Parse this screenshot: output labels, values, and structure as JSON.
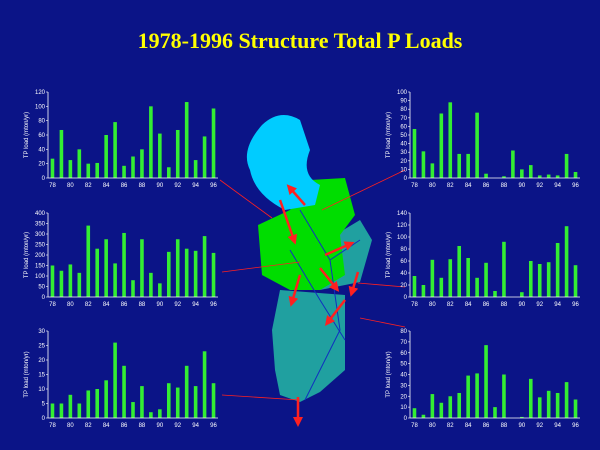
{
  "title": "1978-1996 Structure Total P Loads",
  "chart_data": [
    {
      "type": "bar",
      "ylabel": "TP load (mton/yr)",
      "color": "#33ee33",
      "categories": [
        "78",
        null,
        "80",
        null,
        "82",
        null,
        "84",
        null,
        "86",
        null,
        "88",
        null,
        "90",
        null,
        "92",
        null,
        "94",
        null,
        "96"
      ],
      "values": [
        27,
        67,
        25,
        40,
        20,
        21,
        60,
        78,
        17,
        30,
        40,
        100,
        62,
        15,
        67,
        106,
        25,
        58,
        97
      ],
      "ylim": [
        0,
        120
      ],
      "yticks": [
        0,
        20,
        40,
        60,
        80,
        100,
        120
      ]
    },
    {
      "type": "bar",
      "ylabel": "TP load (mton/yr)",
      "color": "#33ee33",
      "categories": [
        "78",
        null,
        "80",
        null,
        "82",
        null,
        "84",
        null,
        "86",
        null,
        "88",
        null,
        "90",
        null,
        "92",
        null,
        "94",
        null,
        "96"
      ],
      "values": [
        150,
        125,
        155,
        115,
        340,
        230,
        275,
        160,
        305,
        80,
        275,
        115,
        65,
        215,
        275,
        230,
        220,
        290,
        210
      ],
      "ylim": [
        0,
        400
      ],
      "yticks": [
        0,
        50,
        100,
        150,
        200,
        250,
        300,
        350,
        400
      ]
    },
    {
      "type": "bar",
      "ylabel": "TP load (mton/yr)",
      "color": "#33ee33",
      "categories": [
        "78",
        null,
        "80",
        null,
        "82",
        null,
        "84",
        null,
        "86",
        null,
        "88",
        null,
        "90",
        null,
        "92",
        null,
        "94",
        null,
        "96"
      ],
      "values": [
        5,
        5,
        8,
        5,
        9.5,
        10,
        13,
        26,
        18,
        5.5,
        11,
        2,
        3,
        12,
        10.5,
        18,
        11,
        23,
        12
      ],
      "ylim": [
        0,
        30
      ],
      "yticks": [
        0,
        5,
        10,
        15,
        20,
        25,
        30
      ]
    },
    {
      "type": "bar",
      "ylabel": "TP load (mton/yr)",
      "color": "#33ee33",
      "categories": [
        "78",
        null,
        "80",
        null,
        "82",
        null,
        "84",
        null,
        "86",
        null,
        "88",
        null,
        "90",
        null,
        "92",
        null,
        "94",
        null,
        "96"
      ],
      "values": [
        57,
        31,
        17,
        75,
        88,
        28,
        28,
        76,
        5,
        0,
        2,
        32,
        10,
        15,
        3,
        4,
        3,
        28,
        7
      ],
      "ylim": [
        0,
        100
      ],
      "yticks": [
        0,
        10,
        20,
        30,
        40,
        50,
        60,
        70,
        80,
        90,
        100
      ]
    },
    {
      "type": "bar",
      "ylabel": "TP load (mton/yr)",
      "color": "#33ee33",
      "categories": [
        "78",
        null,
        "80",
        null,
        "82",
        null,
        "84",
        null,
        "86",
        null,
        "88",
        null,
        "90",
        null,
        "92",
        null,
        "94",
        null,
        "96"
      ],
      "values": [
        35,
        20,
        62,
        32,
        63,
        85,
        65,
        32,
        57,
        10,
        92,
        0,
        8,
        60,
        55,
        58,
        90,
        118,
        53
      ],
      "ylim": [
        0,
        140
      ],
      "yticks": [
        0,
        20,
        40,
        60,
        80,
        100,
        120,
        140
      ]
    },
    {
      "type": "bar",
      "ylabel": "TP load (mton/yr)",
      "color": "#33ee33",
      "categories": [
        "78",
        null,
        "80",
        null,
        "82",
        null,
        "84",
        null,
        "86",
        null,
        "88",
        null,
        "90",
        null,
        "92",
        null,
        "94",
        null,
        "96"
      ],
      "values": [
        9,
        3,
        22,
        14,
        20,
        23,
        39,
        41,
        67,
        10,
        40,
        0,
        1,
        36,
        19,
        25,
        23,
        33,
        17
      ],
      "ylim": [
        0,
        80
      ],
      "yticks": [
        0,
        10,
        20,
        30,
        40,
        50,
        60,
        70,
        80
      ]
    }
  ]
}
